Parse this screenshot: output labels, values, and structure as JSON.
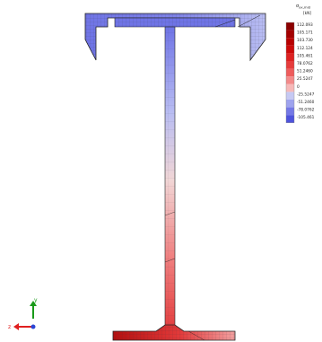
{
  "legend": {
    "title_symbol": "σ",
    "title_subscript": "xx,mid",
    "units": "[kN]",
    "entries": [
      {
        "label": "112.093",
        "color": "#8b0000"
      },
      {
        "label": "105.171",
        "color": "#a30000"
      },
      {
        "label": "103.730",
        "color": "#b80000"
      },
      {
        "label": "112.124",
        "color": "#cc0a0a"
      },
      {
        "label": "105.461",
        "color": "#dd2222"
      },
      {
        "label": "78.0762",
        "color": "#e63c3c"
      },
      {
        "label": "51.2460",
        "color": "#ee5c5c"
      },
      {
        "label": "25.5247",
        "color": "#f38a8a"
      },
      {
        "label": "0",
        "color": "#f6b8b8"
      },
      {
        "label": "-25.5247",
        "color": "#c6c9f3"
      },
      {
        "label": "-51.2460",
        "color": "#9ea3ee"
      },
      {
        "label": "-78.0762",
        "color": "#7478e6"
      },
      {
        "label": "-105.461",
        "color": "#4e53dc"
      }
    ]
  },
  "axes": {
    "vertical_label": "y",
    "horizontal_label": "z",
    "vertical_color": "#1a9a1a",
    "horizontal_color": "#e02020",
    "out_color": "#2b46d6"
  },
  "colors": {
    "compression": "#6f74e6",
    "compression_light": "#b9bdf2",
    "tension": "#e23a3a",
    "tension_dark": "#b40f0f",
    "mesh": "#555566",
    "outline": "#222222"
  }
}
